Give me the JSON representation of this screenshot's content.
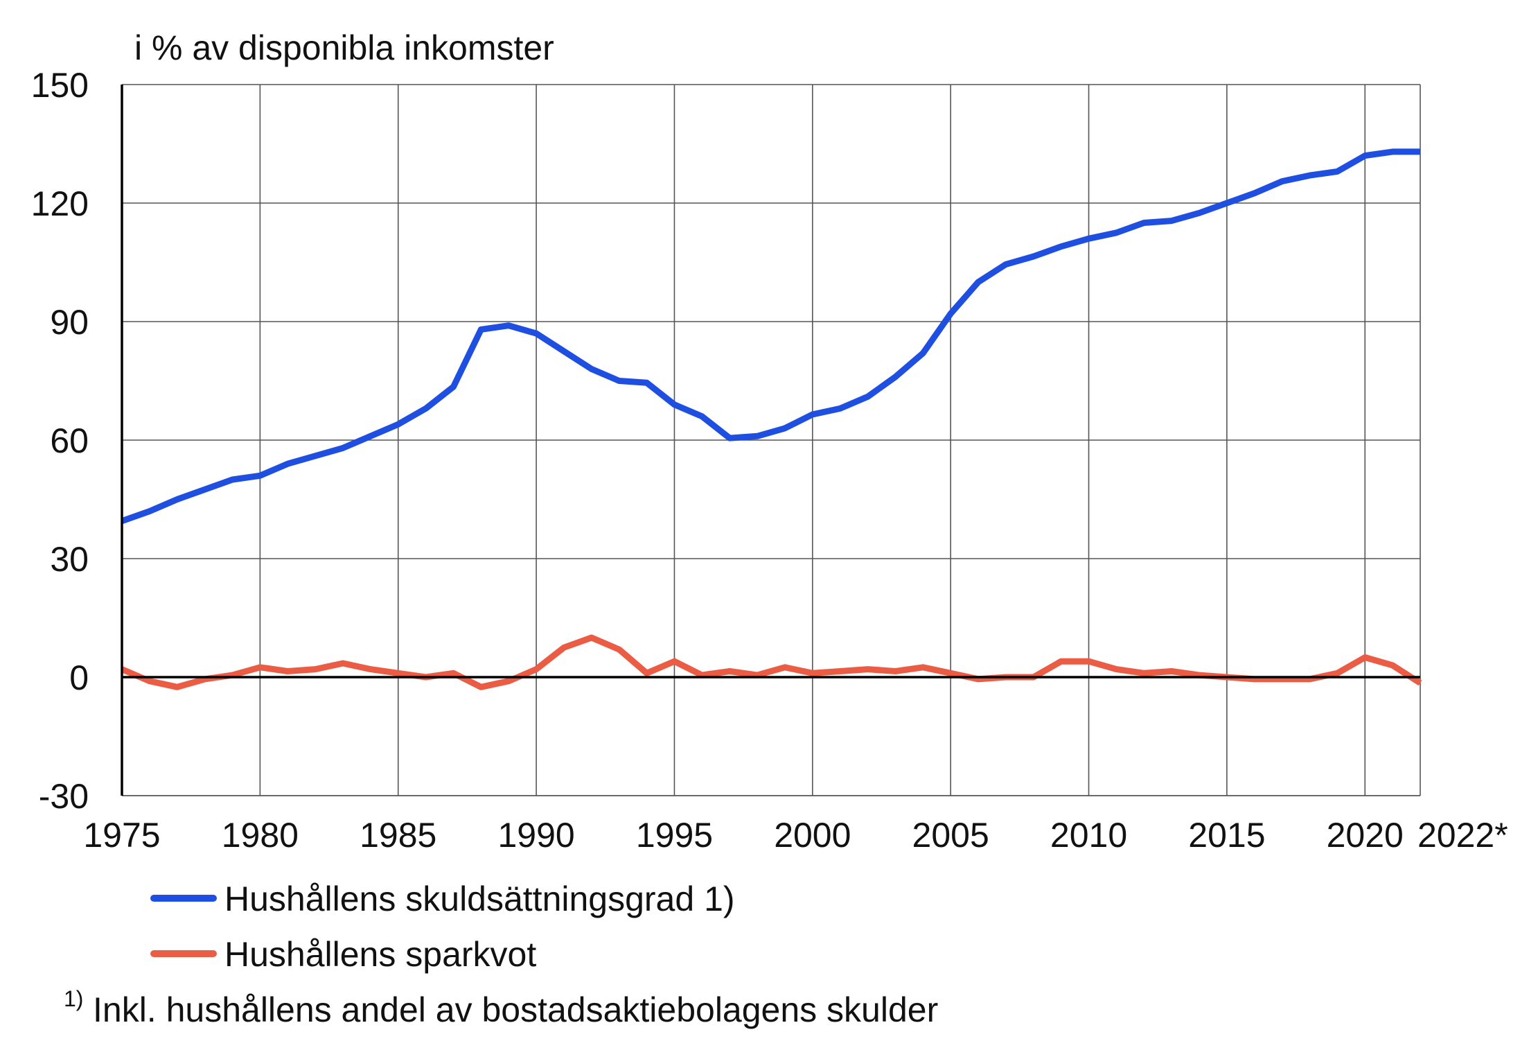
{
  "chart_data": {
    "type": "line",
    "unit_label": "i % av disponibla inkomster",
    "x": [
      1975,
      1976,
      1977,
      1978,
      1979,
      1980,
      1981,
      1982,
      1983,
      1984,
      1985,
      1986,
      1987,
      1988,
      1989,
      1990,
      1991,
      1992,
      1993,
      1994,
      1995,
      1996,
      1997,
      1998,
      1999,
      2000,
      2001,
      2002,
      2003,
      2004,
      2005,
      2006,
      2007,
      2008,
      2009,
      2010,
      2011,
      2012,
      2013,
      2014,
      2015,
      2016,
      2017,
      2018,
      2019,
      2020,
      2021,
      2022
    ],
    "x_tick_labels": [
      "1975",
      "1980",
      "1985",
      "1990",
      "1995",
      "2000",
      "2005",
      "2010",
      "2015",
      "2020",
      "2022*"
    ],
    "x_tick_years": [
      1975,
      1980,
      1985,
      1990,
      1995,
      2000,
      2005,
      2010,
      2015,
      2020,
      2022
    ],
    "ylim": [
      -30,
      150
    ],
    "y_ticks": [
      -30,
      0,
      30,
      60,
      90,
      120,
      150
    ],
    "grid": true,
    "legend_position": "bottom-left",
    "series": [
      {
        "name": "Hushållens skuldsättningsgrad 1)",
        "color": "#1f4fe0",
        "values": [
          39.5,
          42,
          45,
          47.5,
          50,
          51,
          54,
          56,
          58,
          61,
          64,
          68,
          73.5,
          88,
          89,
          87,
          82.5,
          78,
          75,
          74.5,
          69,
          66,
          60.5,
          61,
          63,
          66.5,
          68,
          71,
          76,
          82,
          92,
          100,
          104.5,
          106.5,
          109,
          111,
          112.5,
          115,
          115.5,
          117.5,
          120,
          122.5,
          125.5,
          127,
          128,
          132,
          133,
          133
        ]
      },
      {
        "name": "Hushållens sparkvot",
        "color": "#eb5c45",
        "values": [
          2,
          -1,
          -2.5,
          -0.5,
          0.5,
          2.5,
          1.5,
          2,
          3.5,
          2,
          1,
          0,
          1,
          -2.5,
          -1,
          2,
          7.5,
          10,
          7,
          1,
          4,
          0.5,
          1.5,
          0.5,
          2.5,
          1,
          1.5,
          2,
          1.5,
          2.5,
          1,
          -0.5,
          0,
          0,
          4,
          4,
          2,
          1,
          1.5,
          0.5,
          0,
          -0.5,
          -0.5,
          -0.5,
          1,
          5,
          3,
          -1.5
        ]
      }
    ],
    "footnote_marker": "1)",
    "footnote": "Inkl. hushållens andel av bostadsaktiebolagens skulder"
  }
}
